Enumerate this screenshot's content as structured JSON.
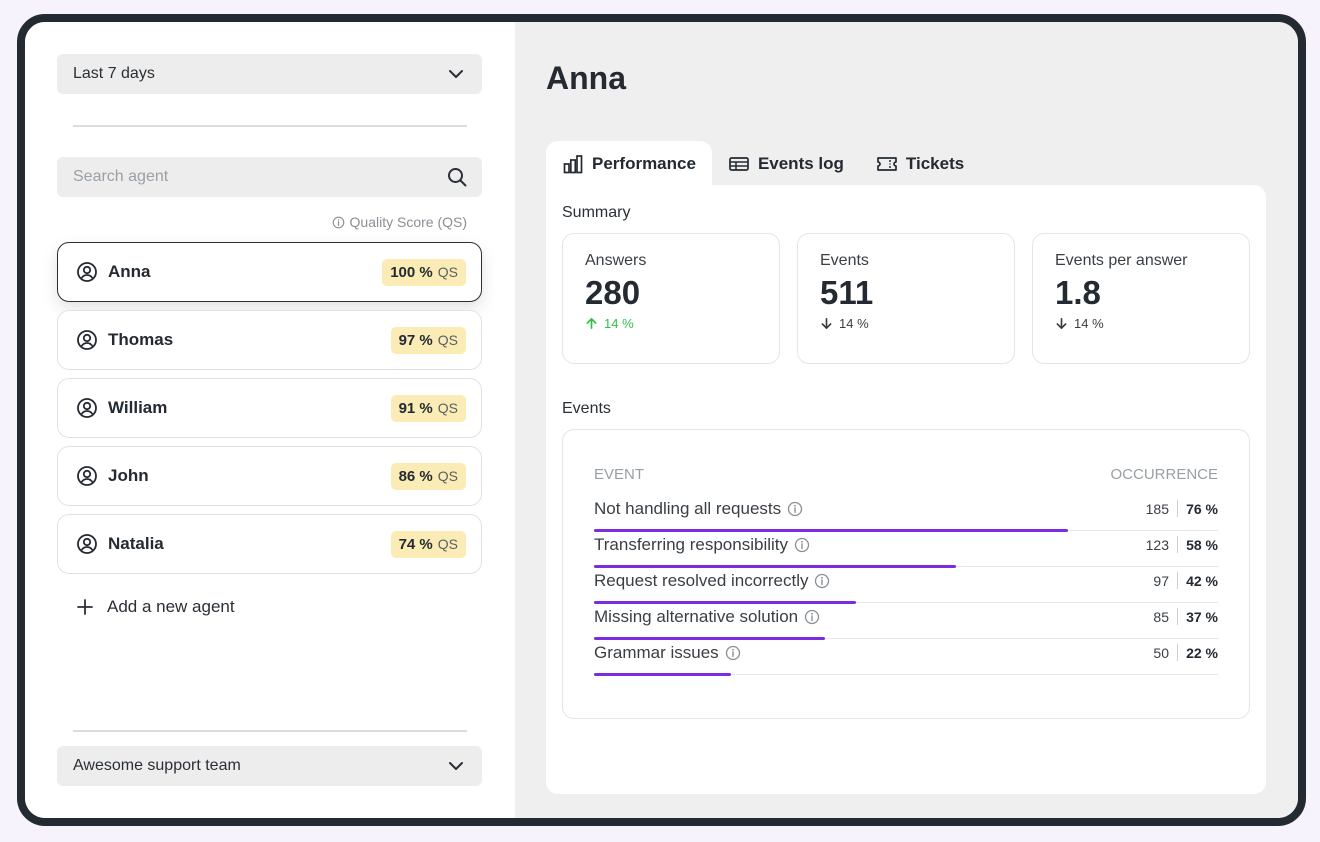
{
  "sidebar": {
    "date_range": "Last 7 days",
    "search_placeholder": "Search agent",
    "qs_hint": "Quality Score (QS)",
    "agents": [
      {
        "name": "Anna",
        "score": "100 %",
        "qs": "QS"
      },
      {
        "name": "Thomas",
        "score": "97 %",
        "qs": "QS"
      },
      {
        "name": "William",
        "score": "91 %",
        "qs": "QS"
      },
      {
        "name": "John",
        "score": "86 %",
        "qs": "QS"
      },
      {
        "name": "Natalia",
        "score": "74 %",
        "qs": "QS"
      }
    ],
    "add_agent": "Add a new agent",
    "team": "Awesome support team"
  },
  "main": {
    "title": "Anna",
    "tabs": [
      {
        "label": "Performance",
        "icon": "bar-chart-icon"
      },
      {
        "label": "Events log",
        "icon": "table-icon"
      },
      {
        "label": "Tickets",
        "icon": "ticket-icon"
      }
    ],
    "summary_label": "Summary",
    "stats": [
      {
        "label": "Answers",
        "value": "280",
        "change": "14 %",
        "direction": "up"
      },
      {
        "label": "Events",
        "value": "511",
        "change": "14 %",
        "direction": "down"
      },
      {
        "label": "Events per answer",
        "value": "1.8",
        "change": "14 %",
        "direction": "down"
      }
    ],
    "events_label": "Events",
    "events_table": {
      "col_event": "EVENT",
      "col_occurrence": "OCCURRENCE",
      "rows": [
        {
          "name": "Not handling all requests",
          "count": "185",
          "pct": "76 %",
          "fraction": 0.76
        },
        {
          "name": "Transferring responsibility",
          "count": "123",
          "pct": "58 %",
          "fraction": 0.58
        },
        {
          "name": "Request resolved incorrectly",
          "count": "97",
          "pct": "42 %",
          "fraction": 0.42
        },
        {
          "name": "Missing alternative solution",
          "count": "85",
          "pct": "37 %",
          "fraction": 0.37
        },
        {
          "name": "Grammar issues",
          "count": "50",
          "pct": "22 %",
          "fraction": 0.22
        }
      ]
    }
  },
  "colors": {
    "accent": "#7b2ce0",
    "badge": "#fbecb6",
    "up": "#2fbf4a",
    "frame": "#232a31"
  }
}
